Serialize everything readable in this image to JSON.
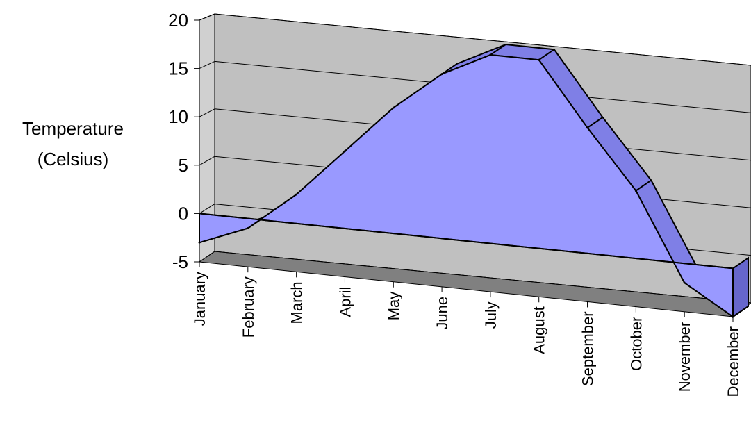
{
  "chart_data": {
    "type": "area",
    "title": "",
    "xlabel": "",
    "ylabel_lines": [
      "Temperature",
      "(Celsius)"
    ],
    "categories": [
      "January",
      "February",
      "March",
      "April",
      "May",
      "June",
      "July",
      "August",
      "September",
      "October",
      "November",
      "December"
    ],
    "series": [
      {
        "values": [
          -3,
          -1,
          3,
          8,
          13,
          17,
          19.5,
          19.5,
          13,
          7,
          -2,
          -5
        ]
      }
    ],
    "ylim": [
      -5,
      20
    ],
    "yticks": [
      -5,
      0,
      5,
      10,
      15,
      20
    ],
    "grid": true,
    "legend": "none",
    "three_d": true,
    "colors": {
      "area_front": "#9999ff",
      "area_side": "#6666cc",
      "area_top": "#7f7fe6",
      "back_wall": "#c0c0c0",
      "side_wall": "#d0d0d0",
      "floor": "#808080",
      "grid": "#000000"
    }
  }
}
